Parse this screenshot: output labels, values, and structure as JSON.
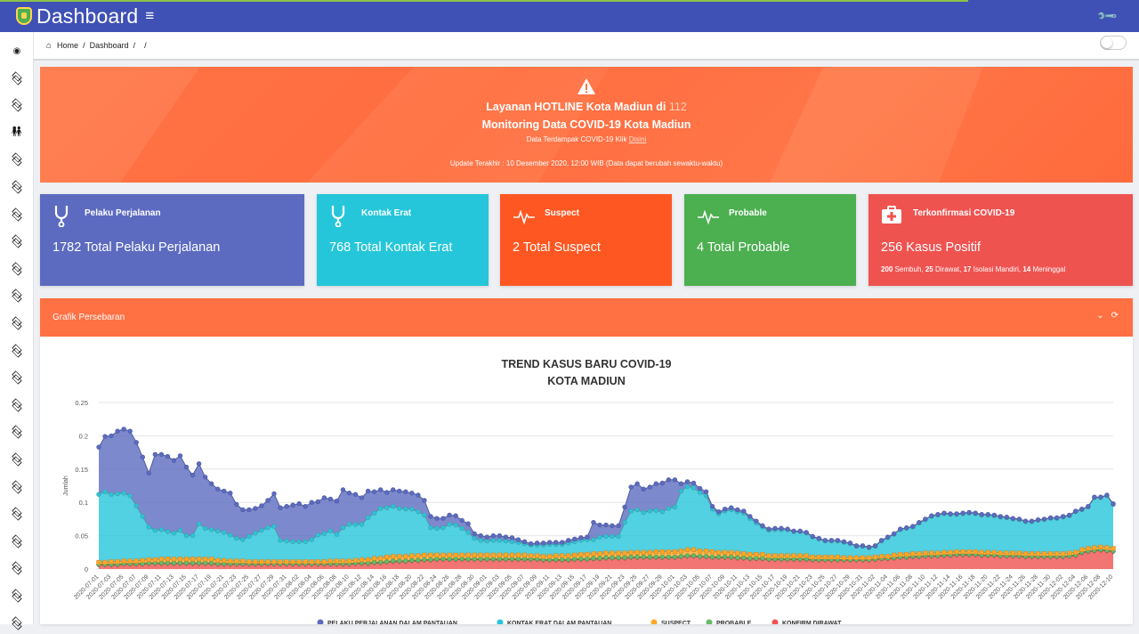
{
  "header": {
    "title": "Dashboard",
    "menu_icon": "hamburger-icon",
    "settings_icon": "wrench-icon"
  },
  "breadcrumb": {
    "home": "Home",
    "dashboard": "Dashboard",
    "sep": "/"
  },
  "sidebar": {
    "icons": [
      "eye-icon",
      "layers-icon",
      "layers-icon",
      "people-icon",
      "layers-icon",
      "layers-icon",
      "layers-icon",
      "layers-icon",
      "layers-icon",
      "layers-icon",
      "layers-icon",
      "layers-icon",
      "layers-icon",
      "layers-icon",
      "layers-icon",
      "layers-icon",
      "layers-icon",
      "layers-icon",
      "layers-icon",
      "layers-icon",
      "layers-icon",
      "layers-icon"
    ]
  },
  "hero": {
    "line1_prefix": "Layanan HOTLINE Kota Madiun di",
    "line1_number": "112",
    "line2": "Monitoring Data COVID-19 Kota Madiun",
    "line3_prefix": "Data Terdampak COVID-19 Klik",
    "line3_link": "Disini",
    "update": "Update Terakhir : 10 Desember 2020, 12:00 WIB (Data dapat berubah sewaktu-waktu)"
  },
  "cards": [
    {
      "title": "Pelaku Perjalanan",
      "value": "1782 Total Pelaku Perjalanan",
      "color": "#5c6bc0",
      "icon": "stethoscope-icon"
    },
    {
      "title": "Kontak Erat",
      "value": "768 Total Kontak Erat",
      "color": "#26c6da",
      "icon": "stethoscope-icon"
    },
    {
      "title": "Suspect",
      "value": "2 Total Suspect",
      "color": "#ff5722",
      "icon": "heartbeat-icon"
    },
    {
      "title": "Probable",
      "value": "4 Total Probable",
      "color": "#4caf50",
      "icon": "heartbeat-icon"
    },
    {
      "title": "Terkonfirmasi COVID-19",
      "value": "256 Kasus Positif",
      "color": "#ef5350",
      "icon": "medkit-icon",
      "sub": {
        "sembuh": "200",
        "sembuh_label": "Sembuh,",
        "dirawat": "25",
        "dirawat_label": "Dirawat,",
        "isolasi": "17",
        "isolasi_label": "Isolasi Mandiri,",
        "meninggal": "14",
        "meninggal_label": "Meninggal"
      }
    }
  ],
  "panel": {
    "title": "Grafik Persebaran",
    "collapse_icon": "chevron-down-icon",
    "refresh_icon": "refresh-icon"
  },
  "chart_data": {
    "type": "area",
    "stacked": true,
    "title": "TREND KASUS BARU COVID-19",
    "subtitle": "KOTA MADIUN",
    "ylabel": "Jumlah",
    "ylim": [
      0,
      0.25
    ],
    "yticks": [
      "0",
      "0.05",
      "0.1",
      "0.15",
      "0.2",
      "0.25"
    ],
    "grid": true,
    "legend_position": "bottom",
    "x_start": "2020-07-01",
    "x_end": "2020-12-10",
    "x_label_step_days": 2,
    "series": [
      {
        "name": "PELAKU PERJALANAN DALAM PANTAUAN",
        "color": "#5c6bc0",
        "values": [
          0.071,
          0.083,
          0.088,
          0.094,
          0.096,
          0.097,
          0.095,
          0.089,
          0.081,
          0.114,
          0.113,
          0.113,
          0.109,
          0.112,
          0.103,
          0.091,
          0.09,
          0.077,
          0.069,
          0.063,
          0.062,
          0.063,
          0.051,
          0.045,
          0.04,
          0.037,
          0.037,
          0.041,
          0.049,
          0.049,
          0.052,
          0.055,
          0.057,
          0.053,
          0.056,
          0.05,
          0.054,
          0.048,
          0.05,
          0.057,
          0.047,
          0.045,
          0.04,
          0.04,
          0.032,
          0.028,
          0.023,
          0.025,
          0.026,
          0.026,
          0.024,
          0.025,
          0.022,
          0.017,
          0.015,
          0.014,
          0.014,
          0.014,
          0.012,
          0.013,
          0.007,
          0.007,
          0.006,
          0.007,
          0.007,
          0.006,
          0.006,
          0.004,
          0.003,
          0.002,
          0.003,
          0.003,
          0.003,
          0.003,
          0.003,
          0.004,
          0.004,
          0.004,
          0.004,
          0.026,
          0.018,
          0.017,
          0.016,
          0.016,
          0.023,
          0.036,
          0.039,
          0.035,
          0.036,
          0.04,
          0.043,
          0.043,
          0.041,
          0.011,
          0.007,
          0.007,
          0.006,
          0.006,
          0.004,
          0.003,
          0.003,
          0.003,
          0.003,
          0.003,
          0.003,
          0.003,
          0.002,
          0.002,
          0.002,
          0.002,
          0.001,
          0.001,
          0.001,
          0.001,
          0.001,
          0.001,
          0.001,
          0.001,
          0.001,
          0.001,
          0.001,
          0.001,
          0.001,
          0.001,
          0.001,
          0.001,
          0.001,
          0.001,
          0.001,
          0.001,
          0.001,
          0.001,
          0.001,
          0.001,
          0.001,
          0.001,
          0.001,
          0.001,
          0.001,
          0.001,
          0.001,
          0.001,
          0.001,
          0.001,
          0.001,
          0.001,
          0.001,
          0.001,
          0.001,
          0.001,
          0.001,
          0.001,
          0.001,
          0.001,
          0.001,
          0.001,
          0.001,
          0.001,
          0.001,
          0.001,
          0.001,
          0.001,
          0.001
        ]
      },
      {
        "name": "KONTAK ERAT DALAM PANTAUAN",
        "color": "#26c6da",
        "values": [
          0.102,
          0.106,
          0.101,
          0.102,
          0.102,
          0.098,
          0.083,
          0.066,
          0.049,
          0.044,
          0.044,
          0.041,
          0.039,
          0.043,
          0.035,
          0.035,
          0.053,
          0.046,
          0.044,
          0.044,
          0.042,
          0.039,
          0.034,
          0.032,
          0.038,
          0.043,
          0.047,
          0.051,
          0.053,
          0.032,
          0.031,
          0.03,
          0.03,
          0.03,
          0.033,
          0.04,
          0.042,
          0.045,
          0.04,
          0.05,
          0.055,
          0.054,
          0.053,
          0.063,
          0.068,
          0.075,
          0.074,
          0.075,
          0.072,
          0.071,
          0.07,
          0.066,
          0.06,
          0.041,
          0.04,
          0.041,
          0.046,
          0.045,
          0.04,
          0.034,
          0.025,
          0.022,
          0.021,
          0.022,
          0.022,
          0.021,
          0.02,
          0.019,
          0.017,
          0.016,
          0.016,
          0.017,
          0.018,
          0.017,
          0.017,
          0.019,
          0.02,
          0.021,
          0.022,
          0.021,
          0.025,
          0.025,
          0.025,
          0.025,
          0.046,
          0.062,
          0.064,
          0.06,
          0.062,
          0.062,
          0.06,
          0.065,
          0.067,
          0.09,
          0.095,
          0.093,
          0.088,
          0.083,
          0.064,
          0.058,
          0.062,
          0.064,
          0.062,
          0.061,
          0.054,
          0.047,
          0.041,
          0.038,
          0.039,
          0.039,
          0.039,
          0.036,
          0.036,
          0.034,
          0.03,
          0.027,
          0.024,
          0.024,
          0.024,
          0.023,
          0.021,
          0.017,
          0.017,
          0.015,
          0.016,
          0.023,
          0.028,
          0.031,
          0.037,
          0.039,
          0.04,
          0.046,
          0.05,
          0.055,
          0.057,
          0.058,
          0.057,
          0.056,
          0.057,
          0.058,
          0.057,
          0.056,
          0.056,
          0.055,
          0.054,
          0.053,
          0.051,
          0.05,
          0.048,
          0.048,
          0.05,
          0.051,
          0.053,
          0.053,
          0.055,
          0.056,
          0.061,
          0.06,
          0.062,
          0.075,
          0.074,
          0.078,
          0.066
        ]
      },
      {
        "name": "SUSPECT",
        "color": "#ffa726",
        "values": [
          0.003,
          0.003,
          0.004,
          0.004,
          0.004,
          0.004,
          0.004,
          0.005,
          0.005,
          0.005,
          0.006,
          0.006,
          0.006,
          0.006,
          0.006,
          0.006,
          0.006,
          0.006,
          0.006,
          0.005,
          0.005,
          0.004,
          0.004,
          0.004,
          0.003,
          0.003,
          0.003,
          0.003,
          0.003,
          0.003,
          0.003,
          0.003,
          0.003,
          0.003,
          0.003,
          0.003,
          0.003,
          0.004,
          0.004,
          0.004,
          0.004,
          0.004,
          0.005,
          0.005,
          0.006,
          0.006,
          0.007,
          0.007,
          0.007,
          0.007,
          0.007,
          0.007,
          0.007,
          0.007,
          0.006,
          0.006,
          0.006,
          0.006,
          0.006,
          0.006,
          0.006,
          0.006,
          0.006,
          0.006,
          0.006,
          0.006,
          0.006,
          0.006,
          0.006,
          0.005,
          0.005,
          0.005,
          0.005,
          0.006,
          0.006,
          0.006,
          0.006,
          0.007,
          0.007,
          0.007,
          0.007,
          0.007,
          0.007,
          0.007,
          0.007,
          0.007,
          0.007,
          0.007,
          0.007,
          0.008,
          0.008,
          0.008,
          0.008,
          0.008,
          0.009,
          0.009,
          0.008,
          0.008,
          0.008,
          0.007,
          0.007,
          0.007,
          0.007,
          0.006,
          0.006,
          0.006,
          0.006,
          0.005,
          0.005,
          0.005,
          0.005,
          0.005,
          0.005,
          0.005,
          0.004,
          0.004,
          0.004,
          0.004,
          0.004,
          0.003,
          0.003,
          0.003,
          0.003,
          0.003,
          0.003,
          0.003,
          0.003,
          0.004,
          0.004,
          0.004,
          0.004,
          0.004,
          0.004,
          0.004,
          0.004,
          0.004,
          0.004,
          0.004,
          0.004,
          0.004,
          0.004,
          0.004,
          0.004,
          0.004,
          0.004,
          0.004,
          0.004,
          0.004,
          0.004,
          0.004,
          0.004,
          0.004,
          0.004,
          0.004,
          0.004,
          0.004,
          0.004,
          0.004,
          0.004,
          0.004,
          0.004,
          0.004,
          0.004
        ]
      },
      {
        "name": "PROBABLE",
        "color": "#66bb6a",
        "values": [
          0.001,
          0.001,
          0.001,
          0.001,
          0.001,
          0.001,
          0.001,
          0.001,
          0.001,
          0.001,
          0.001,
          0.001,
          0.001,
          0.001,
          0.001,
          0.001,
          0.001,
          0.001,
          0.001,
          0.001,
          0.001,
          0.001,
          0.001,
          0.001,
          0.001,
          0.001,
          0.001,
          0.001,
          0.001,
          0.001,
          0.001,
          0.001,
          0.001,
          0.001,
          0.001,
          0.001,
          0.001,
          0.001,
          0.001,
          0.001,
          0.001,
          0.001,
          0.001,
          0.001,
          0.001,
          0.001,
          0.001,
          0.001,
          0.001,
          0.001,
          0.001,
          0.001,
          0.001,
          0.001,
          0.001,
          0.001,
          0.001,
          0.001,
          0.001,
          0.001,
          0.001,
          0.001,
          0.001,
          0.001,
          0.001,
          0.001,
          0.001,
          0.001,
          0.001,
          0.001,
          0.001,
          0.001,
          0.001,
          0.001,
          0.001,
          0.001,
          0.001,
          0.001,
          0.001,
          0.001,
          0.001,
          0.001,
          0.001,
          0.001,
          0.001,
          0.001,
          0.001,
          0.001,
          0.001,
          0.001,
          0.001,
          0.001,
          0.001,
          0.001,
          0.001,
          0.001,
          0.001,
          0.001,
          0.001,
          0.001,
          0.001,
          0.001,
          0.001,
          0.001,
          0.001,
          0.001,
          0.001,
          0.001,
          0.001,
          0.001,
          0.001,
          0.001,
          0.001,
          0.001,
          0.001,
          0.001,
          0.001,
          0.001,
          0.001,
          0.001,
          0.001,
          0.001,
          0.001,
          0.001,
          0.001,
          0.001,
          0.001,
          0.001,
          0.001,
          0.001,
          0.001,
          0.001,
          0.001,
          0.001,
          0.001,
          0.001,
          0.001,
          0.001,
          0.001,
          0.001,
          0.001,
          0.001,
          0.001,
          0.001,
          0.001,
          0.001,
          0.001,
          0.001,
          0.001,
          0.001,
          0.001,
          0.001,
          0.001,
          0.001,
          0.001,
          0.001,
          0.001,
          0.001,
          0.001,
          0.001,
          0.001,
          0.001,
          0.001
        ]
      },
      {
        "name": "KONFIRM DIRAWAT",
        "color": "#ef5350",
        "values": [
          0.006,
          0.006,
          0.006,
          0.006,
          0.007,
          0.007,
          0.007,
          0.007,
          0.008,
          0.008,
          0.008,
          0.008,
          0.008,
          0.008,
          0.008,
          0.008,
          0.008,
          0.008,
          0.008,
          0.007,
          0.007,
          0.007,
          0.007,
          0.007,
          0.007,
          0.007,
          0.007,
          0.007,
          0.007,
          0.007,
          0.007,
          0.007,
          0.007,
          0.007,
          0.007,
          0.007,
          0.007,
          0.007,
          0.007,
          0.007,
          0.007,
          0.008,
          0.008,
          0.008,
          0.009,
          0.009,
          0.01,
          0.011,
          0.011,
          0.011,
          0.012,
          0.012,
          0.013,
          0.013,
          0.014,
          0.014,
          0.014,
          0.014,
          0.014,
          0.014,
          0.014,
          0.014,
          0.014,
          0.014,
          0.014,
          0.014,
          0.014,
          0.014,
          0.014,
          0.014,
          0.014,
          0.013,
          0.013,
          0.013,
          0.013,
          0.013,
          0.014,
          0.014,
          0.014,
          0.015,
          0.015,
          0.016,
          0.016,
          0.016,
          0.016,
          0.017,
          0.017,
          0.017,
          0.017,
          0.017,
          0.017,
          0.017,
          0.017,
          0.018,
          0.019,
          0.019,
          0.018,
          0.018,
          0.017,
          0.017,
          0.017,
          0.017,
          0.016,
          0.016,
          0.015,
          0.015,
          0.015,
          0.014,
          0.014,
          0.014,
          0.014,
          0.014,
          0.014,
          0.014,
          0.013,
          0.013,
          0.013,
          0.013,
          0.013,
          0.013,
          0.013,
          0.013,
          0.013,
          0.013,
          0.014,
          0.015,
          0.015,
          0.016,
          0.017,
          0.017,
          0.018,
          0.018,
          0.019,
          0.019,
          0.019,
          0.02,
          0.02,
          0.021,
          0.021,
          0.021,
          0.021,
          0.02,
          0.02,
          0.02,
          0.019,
          0.019,
          0.019,
          0.019,
          0.018,
          0.018,
          0.018,
          0.018,
          0.018,
          0.018,
          0.018,
          0.019,
          0.02,
          0.024,
          0.026,
          0.027,
          0.028,
          0.027,
          0.026
        ]
      }
    ]
  }
}
